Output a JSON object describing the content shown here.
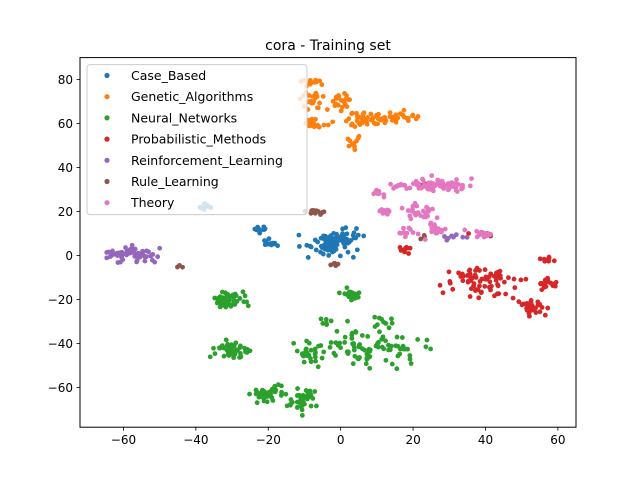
{
  "chart_data": {
    "type": "scatter",
    "title": "cora - Training set",
    "xlabel": "",
    "ylabel": "",
    "xlim": [
      -72,
      65
    ],
    "ylim": [
      -78,
      90
    ],
    "xticks": [
      -60,
      -40,
      -20,
      0,
      20,
      40,
      60
    ],
    "yticks": [
      -60,
      -40,
      -20,
      0,
      20,
      40,
      60,
      80
    ],
    "grid": false,
    "legend_position": "top-left",
    "series": [
      {
        "name": "Case_Based",
        "color": "#1f77b4",
        "clusters": [
          {
            "cx": -3,
            "cy": 5,
            "sx": 4.0,
            "sy": 4.0,
            "n": 60,
            "sd": 1
          },
          {
            "cx": 2,
            "cy": 8,
            "sx": 2.5,
            "sy": 3.0,
            "n": 25,
            "sd": 2
          },
          {
            "cx": -20,
            "cy": 6,
            "sx": 1.5,
            "sy": 1.2,
            "n": 12,
            "sd": 3
          },
          {
            "cx": -22,
            "cy": 12,
            "sx": 1.5,
            "sy": 1.0,
            "n": 10,
            "sd": 4
          },
          {
            "cx": -38,
            "cy": 22,
            "sx": 1.5,
            "sy": 1.5,
            "n": 10,
            "sd": 5
          }
        ]
      },
      {
        "name": "Genetic_Algorithms",
        "color": "#ff7f0e",
        "clusters": [
          {
            "cx": -8,
            "cy": 79,
            "sx": 2.0,
            "sy": 1.5,
            "n": 14,
            "sd": 6
          },
          {
            "cx": -8,
            "cy": 70,
            "sx": 2.5,
            "sy": 3.0,
            "n": 22,
            "sd": 7
          },
          {
            "cx": -8,
            "cy": 60,
            "sx": 2.5,
            "sy": 2.0,
            "n": 18,
            "sd": 8
          },
          {
            "cx": 0,
            "cy": 70,
            "sx": 2.0,
            "sy": 4.0,
            "n": 22,
            "sd": 9
          },
          {
            "cx": 7,
            "cy": 62,
            "sx": 5.0,
            "sy": 3.0,
            "n": 45,
            "sd": 10
          },
          {
            "cx": 15,
            "cy": 63,
            "sx": 4.0,
            "sy": 1.2,
            "n": 22,
            "sd": 11
          },
          {
            "cx": 4,
            "cy": 52,
            "sx": 1.5,
            "sy": 2.0,
            "n": 10,
            "sd": 12
          }
        ]
      },
      {
        "name": "Neural_Networks",
        "color": "#2ca02c",
        "clusters": [
          {
            "cx": -31,
            "cy": -20,
            "sx": 3.0,
            "sy": 2.5,
            "n": 55,
            "sd": 13
          },
          {
            "cx": -30,
            "cy": -43,
            "sx": 3.0,
            "sy": 2.5,
            "n": 45,
            "sd": 14
          },
          {
            "cx": -20,
            "cy": -63,
            "sx": 2.5,
            "sy": 2.5,
            "n": 40,
            "sd": 15
          },
          {
            "cx": -10,
            "cy": -65,
            "sx": 3.0,
            "sy": 4.0,
            "n": 35,
            "sd": 16
          },
          {
            "cx": 3,
            "cy": -18,
            "sx": 2.0,
            "sy": 2.0,
            "n": 20,
            "sd": 17
          },
          {
            "cx": 8,
            "cy": -42,
            "sx": 9.0,
            "sy": 6.0,
            "n": 90,
            "sd": 18
          },
          {
            "cx": -8,
            "cy": -45,
            "sx": 2.5,
            "sy": 3.5,
            "n": 25,
            "sd": 19
          },
          {
            "cx": -5,
            "cy": -30,
            "sx": 1.5,
            "sy": 1.0,
            "n": 6,
            "sd": 20
          },
          {
            "cx": 12,
            "cy": -30,
            "sx": 1.5,
            "sy": 1.5,
            "n": 8,
            "sd": 21
          }
        ]
      },
      {
        "name": "Probabilistic_Methods",
        "color": "#d62728",
        "clusters": [
          {
            "cx": 38,
            "cy": -12,
            "sx": 7.0,
            "sy": 5.0,
            "n": 70,
            "sd": 22
          },
          {
            "cx": 52,
            "cy": -23,
            "sx": 3.0,
            "sy": 3.0,
            "n": 30,
            "sd": 23
          },
          {
            "cx": 57,
            "cy": -13,
            "sx": 2.0,
            "sy": 1.5,
            "n": 18,
            "sd": 24
          },
          {
            "cx": 57,
            "cy": -2,
            "sx": 1.2,
            "sy": 1.2,
            "n": 10,
            "sd": 25
          },
          {
            "cx": 18,
            "cy": 2,
            "sx": 2.0,
            "sy": 2.0,
            "n": 10,
            "sd": 26
          },
          {
            "cx": 22,
            "cy": 32,
            "sx": 2.0,
            "sy": 1.5,
            "n": 6,
            "sd": 27
          },
          {
            "cx": 40,
            "cy": 10,
            "sx": 2.0,
            "sy": 1.0,
            "n": 6,
            "sd": 28
          }
        ]
      },
      {
        "name": "Reinforcement_Learning",
        "color": "#9467bd",
        "clusters": [
          {
            "cx": -61,
            "cy": 1,
            "sx": 4.0,
            "sy": 2.0,
            "n": 40,
            "sd": 29
          },
          {
            "cx": -55,
            "cy": 0,
            "sx": 3.0,
            "sy": 3.0,
            "n": 25,
            "sd": 30
          },
          {
            "cx": 32,
            "cy": 8,
            "sx": 3.0,
            "sy": 1.5,
            "n": 8,
            "sd": 31
          }
        ]
      },
      {
        "name": "Rule_Learning",
        "color": "#8c564b",
        "clusters": [
          {
            "cx": -7,
            "cy": 20,
            "sx": 1.5,
            "sy": 1.0,
            "n": 18,
            "sd": 32
          },
          {
            "cx": -2,
            "cy": -4,
            "sx": 0.8,
            "sy": 1.0,
            "n": 5,
            "sd": 33
          },
          {
            "cx": -44,
            "cy": -5,
            "sx": 0.8,
            "sy": 0.5,
            "n": 3,
            "sd": 34
          },
          {
            "cx": 22,
            "cy": 8,
            "sx": 1.0,
            "sy": 1.0,
            "n": 3,
            "sd": 35
          }
        ]
      },
      {
        "name": "Theory",
        "color": "#e377c2",
        "clusters": [
          {
            "cx": 28,
            "cy": 32,
            "sx": 6.0,
            "sy": 2.0,
            "n": 60,
            "sd": 36
          },
          {
            "cx": 17,
            "cy": 32,
            "sx": 2.5,
            "sy": 1.2,
            "n": 15,
            "sd": 37
          },
          {
            "cx": 10,
            "cy": 28,
            "sx": 1.5,
            "sy": 1.0,
            "n": 10,
            "sd": 38
          },
          {
            "cx": 22,
            "cy": 20,
            "sx": 3.0,
            "sy": 2.5,
            "n": 30,
            "sd": 39
          },
          {
            "cx": 12,
            "cy": 20,
            "sx": 2.0,
            "sy": 1.5,
            "n": 15,
            "sd": 40
          },
          {
            "cx": 26,
            "cy": 12,
            "sx": 2.5,
            "sy": 2.0,
            "n": 20,
            "sd": 41
          },
          {
            "cx": 18,
            "cy": 10,
            "sx": 2.0,
            "sy": 1.5,
            "n": 10,
            "sd": 42
          },
          {
            "cx": 38,
            "cy": 10,
            "sx": 3.0,
            "sy": 1.0,
            "n": 12,
            "sd": 43
          }
        ]
      }
    ]
  }
}
